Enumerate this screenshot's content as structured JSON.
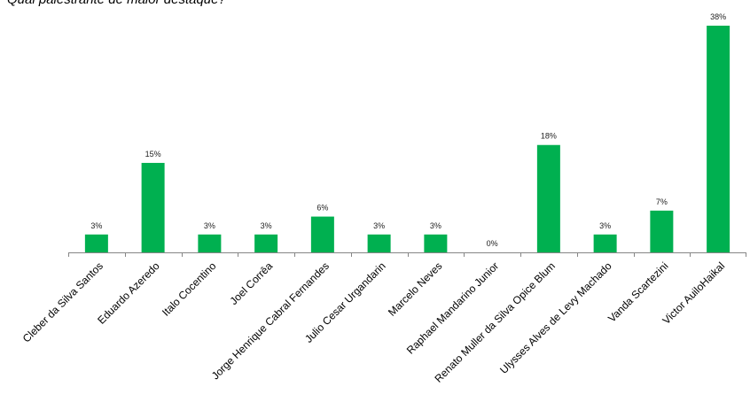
{
  "chart_data": {
    "type": "bar",
    "title": "Qual palestrante de maior destaque?",
    "categories": [
      "Cleber da Silva Santos",
      "Eduardo Azeredo",
      "Italo Cocentino",
      "Joel Corrêa",
      "Jorge Henrique Cabral Fernandes",
      "Julio Cesar Urgandarin",
      "Marcelo Neves",
      "Raphael Mandarino Junior",
      "Renato Muller da Silva Opice Blum",
      "Ulysses Alves de Levy Machado",
      "Vanda Scartezini",
      "Victor AuiloHaikal"
    ],
    "values": [
      3,
      15,
      3,
      3,
      6,
      3,
      3,
      0,
      18,
      3,
      7,
      38
    ],
    "value_labels": [
      "3%",
      "15%",
      "3%",
      "3%",
      "6%",
      "3%",
      "3%",
      "0%",
      "18%",
      "3%",
      "7%",
      "38%"
    ],
    "ylim": [
      0,
      38
    ],
    "bar_color": "#00b050",
    "grid": false,
    "legend": "none"
  }
}
